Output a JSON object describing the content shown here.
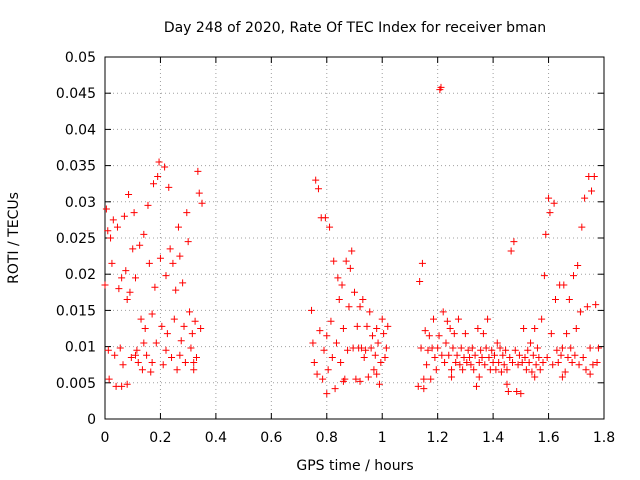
{
  "chart_data": {
    "type": "scatter",
    "title": "Day 248 of 2020, Rate Of TEC Index for receiver bman",
    "xlabel": "GPS time / hours",
    "ylabel": "ROTI / TECUs",
    "xlim": [
      0,
      1.8
    ],
    "ylim": [
      0,
      0.05
    ],
    "xticks": [
      "0",
      "0.2",
      "0.4",
      "0.6",
      "0.8",
      "1",
      "1.2",
      "1.4",
      "1.6",
      "1.8"
    ],
    "yticks": [
      "0",
      "0.005",
      "0.01",
      "0.015",
      "0.02",
      "0.025",
      "0.03",
      "0.035",
      "0.04",
      "0.045",
      "0.05"
    ],
    "xtick_values": [
      0,
      0.2,
      0.4,
      0.6,
      0.8,
      1.0,
      1.2,
      1.4,
      1.6,
      1.8
    ],
    "ytick_values": [
      0,
      0.005,
      0.01,
      0.015,
      0.02,
      0.025,
      0.03,
      0.035,
      0.04,
      0.045,
      0.05
    ],
    "grid": true,
    "marker": "+",
    "color": "#ff0000",
    "series": [
      {
        "name": "ROTI",
        "points": [
          [
            0.0,
            0.0185
          ],
          [
            0.005,
            0.029
          ],
          [
            0.01,
            0.026
          ],
          [
            0.012,
            0.0095
          ],
          [
            0.015,
            0.0055
          ],
          [
            0.02,
            0.025
          ],
          [
            0.025,
            0.0215
          ],
          [
            0.03,
            0.0275
          ],
          [
            0.035,
            0.0088
          ],
          [
            0.04,
            0.0045
          ],
          [
            0.045,
            0.0265
          ],
          [
            0.05,
            0.018
          ],
          [
            0.055,
            0.0098
          ],
          [
            0.06,
            0.0195
          ],
          [
            0.065,
            0.0075
          ],
          [
            0.07,
            0.028
          ],
          [
            0.075,
            0.0205
          ],
          [
            0.08,
            0.0048
          ],
          [
            0.085,
            0.031
          ],
          [
            0.09,
            0.0175
          ],
          [
            0.095,
            0.0085
          ],
          [
            0.1,
            0.0235
          ],
          [
            0.105,
            0.0285
          ],
          [
            0.11,
            0.0195
          ],
          [
            0.115,
            0.0095
          ],
          [
            0.12,
            0.0078
          ],
          [
            0.125,
            0.024
          ],
          [
            0.13,
            0.0138
          ],
          [
            0.135,
            0.0068
          ],
          [
            0.14,
            0.0255
          ],
          [
            0.145,
            0.0125
          ],
          [
            0.15,
            0.0088
          ],
          [
            0.155,
            0.0295
          ],
          [
            0.16,
            0.0215
          ],
          [
            0.165,
            0.0065
          ],
          [
            0.17,
            0.0145
          ],
          [
            0.175,
            0.0325
          ],
          [
            0.18,
            0.0182
          ],
          [
            0.185,
            0.0105
          ],
          [
            0.19,
            0.0335
          ],
          [
            0.195,
            0.0355
          ],
          [
            0.2,
            0.0222
          ],
          [
            0.205,
            0.0128
          ],
          [
            0.21,
            0.0075
          ],
          [
            0.215,
            0.0348
          ],
          [
            0.22,
            0.0198
          ],
          [
            0.225,
            0.0118
          ],
          [
            0.23,
            0.032
          ],
          [
            0.235,
            0.0235
          ],
          [
            0.24,
            0.0085
          ],
          [
            0.245,
            0.0215
          ],
          [
            0.25,
            0.0138
          ],
          [
            0.255,
            0.0178
          ],
          [
            0.26,
            0.0068
          ],
          [
            0.265,
            0.0265
          ],
          [
            0.27,
            0.0225
          ],
          [
            0.275,
            0.0108
          ],
          [
            0.28,
            0.0188
          ],
          [
            0.285,
            0.0128
          ],
          [
            0.29,
            0.0078
          ],
          [
            0.295,
            0.0285
          ],
          [
            0.3,
            0.0245
          ],
          [
            0.305,
            0.0148
          ],
          [
            0.31,
            0.0098
          ],
          [
            0.315,
            0.0118
          ],
          [
            0.32,
            0.0068
          ],
          [
            0.325,
            0.0135
          ],
          [
            0.33,
            0.0085
          ],
          [
            0.335,
            0.0342
          ],
          [
            0.34,
            0.0312
          ],
          [
            0.345,
            0.0125
          ],
          [
            0.35,
            0.0298
          ],
          [
            0.06,
            0.0045
          ],
          [
            0.11,
            0.0088
          ],
          [
            0.17,
            0.0078
          ],
          [
            0.22,
            0.0095
          ],
          [
            0.27,
            0.0088
          ],
          [
            0.32,
            0.0078
          ],
          [
            0.14,
            0.0105
          ],
          [
            0.08,
            0.0165
          ],
          [
            0.745,
            0.015
          ],
          [
            0.75,
            0.0105
          ],
          [
            0.755,
            0.0078
          ],
          [
            0.76,
            0.033
          ],
          [
            0.765,
            0.0062
          ],
          [
            0.77,
            0.0318
          ],
          [
            0.775,
            0.0122
          ],
          [
            0.78,
            0.0278
          ],
          [
            0.785,
            0.0055
          ],
          [
            0.79,
            0.0095
          ],
          [
            0.795,
            0.0278
          ],
          [
            0.8,
            0.0115
          ],
          [
            0.805,
            0.0068
          ],
          [
            0.81,
            0.0265
          ],
          [
            0.815,
            0.0135
          ],
          [
            0.82,
            0.0085
          ],
          [
            0.825,
            0.0218
          ],
          [
            0.83,
            0.0042
          ],
          [
            0.835,
            0.0105
          ],
          [
            0.84,
            0.0195
          ],
          [
            0.845,
            0.0165
          ],
          [
            0.85,
            0.0078
          ],
          [
            0.855,
            0.0185
          ],
          [
            0.86,
            0.0125
          ],
          [
            0.865,
            0.0055
          ],
          [
            0.87,
            0.0218
          ],
          [
            0.875,
            0.0095
          ],
          [
            0.88,
            0.0155
          ],
          [
            0.885,
            0.0208
          ],
          [
            0.89,
            0.0232
          ],
          [
            0.895,
            0.0098
          ],
          [
            0.9,
            0.0175
          ],
          [
            0.905,
            0.0055
          ],
          [
            0.91,
            0.0128
          ],
          [
            0.915,
            0.0098
          ],
          [
            0.92,
            0.0155
          ],
          [
            0.925,
            0.0098
          ],
          [
            0.93,
            0.0165
          ],
          [
            0.935,
            0.0085
          ],
          [
            0.94,
            0.0095
          ],
          [
            0.945,
            0.0128
          ],
          [
            0.95,
            0.0058
          ],
          [
            0.955,
            0.0148
          ],
          [
            0.96,
            0.0098
          ],
          [
            0.965,
            0.0115
          ],
          [
            0.97,
            0.0068
          ],
          [
            0.975,
            0.0088
          ],
          [
            0.98,
            0.0125
          ],
          [
            0.985,
            0.0105
          ],
          [
            0.99,
            0.0048
          ],
          [
            0.995,
            0.0078
          ],
          [
            1.0,
            0.0138
          ],
          [
            1.005,
            0.0118
          ],
          [
            1.01,
            0.0085
          ],
          [
            1.015,
            0.0098
          ],
          [
            1.02,
            0.0128
          ],
          [
            0.8,
            0.0035
          ],
          [
            0.86,
            0.0052
          ],
          [
            0.92,
            0.0052
          ],
          [
            0.98,
            0.0062
          ],
          [
            1.13,
            0.0045
          ],
          [
            1.135,
            0.019
          ],
          [
            1.14,
            0.0098
          ],
          [
            1.145,
            0.0215
          ],
          [
            1.15,
            0.0055
          ],
          [
            1.155,
            0.0122
          ],
          [
            1.16,
            0.0075
          ],
          [
            1.165,
            0.0095
          ],
          [
            1.17,
            0.0115
          ],
          [
            1.175,
            0.0055
          ],
          [
            1.18,
            0.0098
          ],
          [
            1.185,
            0.0138
          ],
          [
            1.19,
            0.0085
          ],
          [
            1.195,
            0.0068
          ],
          [
            1.2,
            0.0098
          ],
          [
            1.205,
            0.0115
          ],
          [
            1.208,
            0.0455
          ],
          [
            1.212,
            0.0458
          ],
          [
            1.215,
            0.0088
          ],
          [
            1.22,
            0.0148
          ],
          [
            1.225,
            0.0078
          ],
          [
            1.23,
            0.0105
          ],
          [
            1.235,
            0.0135
          ],
          [
            1.24,
            0.0088
          ],
          [
            1.245,
            0.0125
          ],
          [
            1.25,
            0.0068
          ],
          [
            1.255,
            0.0098
          ],
          [
            1.26,
            0.0118
          ],
          [
            1.265,
            0.0078
          ],
          [
            1.27,
            0.0088
          ],
          [
            1.275,
            0.0138
          ],
          [
            1.28,
            0.0075
          ],
          [
            1.285,
            0.0098
          ],
          [
            1.29,
            0.0068
          ],
          [
            1.295,
            0.0085
          ],
          [
            1.3,
            0.0118
          ],
          [
            1.305,
            0.0078
          ],
          [
            1.31,
            0.0095
          ],
          [
            1.315,
            0.0085
          ],
          [
            1.32,
            0.0075
          ],
          [
            1.325,
            0.0098
          ],
          [
            1.33,
            0.0068
          ],
          [
            1.335,
            0.0088
          ],
          [
            1.34,
            0.0045
          ],
          [
            1.345,
            0.0125
          ],
          [
            1.35,
            0.0078
          ],
          [
            1.355,
            0.0095
          ],
          [
            1.36,
            0.0085
          ],
          [
            1.365,
            0.0118
          ],
          [
            1.37,
            0.0075
          ],
          [
            1.375,
            0.0098
          ],
          [
            1.38,
            0.0138
          ],
          [
            1.385,
            0.0085
          ],
          [
            1.39,
            0.0068
          ],
          [
            1.395,
            0.0095
          ],
          [
            1.4,
            0.0078
          ],
          [
            1.405,
            0.0088
          ],
          [
            1.41,
            0.0068
          ],
          [
            1.415,
            0.0105
          ],
          [
            1.42,
            0.0078
          ],
          [
            1.425,
            0.0098
          ],
          [
            1.43,
            0.0065
          ],
          [
            1.435,
            0.0088
          ],
          [
            1.44,
            0.0075
          ],
          [
            1.445,
            0.0095
          ],
          [
            1.45,
            0.0068
          ],
          [
            1.455,
            0.0038
          ],
          [
            1.46,
            0.0085
          ],
          [
            1.465,
            0.0232
          ],
          [
            1.47,
            0.0078
          ],
          [
            1.475,
            0.0245
          ],
          [
            1.48,
            0.0095
          ],
          [
            1.485,
            0.0038
          ],
          [
            1.49,
            0.0075
          ],
          [
            1.495,
            0.0088
          ],
          [
            1.5,
            0.0035
          ],
          [
            1.505,
            0.0078
          ],
          [
            1.51,
            0.0125
          ],
          [
            1.515,
            0.0085
          ],
          [
            1.52,
            0.0068
          ],
          [
            1.525,
            0.0095
          ],
          [
            1.53,
            0.0078
          ],
          [
            1.535,
            0.0105
          ],
          [
            1.54,
            0.0065
          ],
          [
            1.545,
            0.0088
          ],
          [
            1.55,
            0.0125
          ],
          [
            1.555,
            0.0075
          ],
          [
            1.56,
            0.0098
          ],
          [
            1.565,
            0.0085
          ],
          [
            1.57,
            0.0068
          ],
          [
            1.575,
            0.0138
          ],
          [
            1.58,
            0.0078
          ],
          [
            1.585,
            0.0198
          ],
          [
            1.59,
            0.0255
          ],
          [
            1.595,
            0.0085
          ],
          [
            1.6,
            0.0305
          ],
          [
            1.605,
            0.0285
          ],
          [
            1.61,
            0.0118
          ],
          [
            1.615,
            0.0075
          ],
          [
            1.62,
            0.0298
          ],
          [
            1.625,
            0.0165
          ],
          [
            1.63,
            0.0095
          ],
          [
            1.635,
            0.0078
          ],
          [
            1.64,
            0.0185
          ],
          [
            1.645,
            0.0088
          ],
          [
            1.65,
            0.0098
          ],
          [
            1.655,
            0.0185
          ],
          [
            1.66,
            0.0065
          ],
          [
            1.665,
            0.0118
          ],
          [
            1.67,
            0.0085
          ],
          [
            1.675,
            0.0165
          ],
          [
            1.68,
            0.0098
          ],
          [
            1.685,
            0.0078
          ],
          [
            1.69,
            0.0198
          ],
          [
            1.695,
            0.0088
          ],
          [
            1.7,
            0.0125
          ],
          [
            1.705,
            0.0212
          ],
          [
            1.71,
            0.0075
          ],
          [
            1.715,
            0.0148
          ],
          [
            1.72,
            0.0265
          ],
          [
            1.725,
            0.0085
          ],
          [
            1.73,
            0.0305
          ],
          [
            1.735,
            0.0068
          ],
          [
            1.74,
            0.0155
          ],
          [
            1.745,
            0.0335
          ],
          [
            1.75,
            0.0098
          ],
          [
            1.755,
            0.0315
          ],
          [
            1.76,
            0.0075
          ],
          [
            1.765,
            0.0335
          ],
          [
            1.77,
            0.0158
          ],
          [
            1.775,
            0.0078
          ],
          [
            1.78,
            0.0098
          ],
          [
            1.15,
            0.0042
          ],
          [
            1.25,
            0.0058
          ],
          [
            1.35,
            0.0058
          ],
          [
            1.45,
            0.0048
          ],
          [
            1.55,
            0.0058
          ],
          [
            1.65,
            0.0058
          ],
          [
            1.75,
            0.0062
          ]
        ]
      }
    ]
  }
}
